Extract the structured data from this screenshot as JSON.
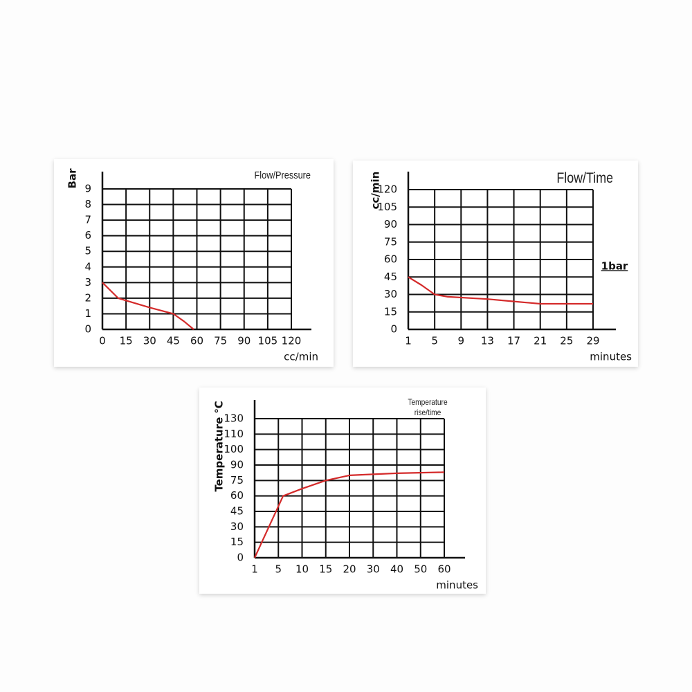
{
  "chart_data": [
    {
      "type": "line",
      "title": "Flow/Pressure",
      "x_label": "cc/min",
      "y_label": "Bar",
      "x": [
        0,
        10,
        30,
        45,
        52,
        58
      ],
      "values": [
        3,
        2,
        1.4,
        1,
        0.5,
        0
      ],
      "color": "#d42a2a",
      "xlim": [
        0,
        120
      ],
      "xticks": [
        0,
        15,
        30,
        45,
        60,
        75,
        90,
        105,
        120
      ],
      "ylim": [
        0,
        9
      ],
      "yticks": [
        0,
        1,
        2,
        3,
        4,
        5,
        6,
        7,
        8,
        9
      ],
      "grid": true
    },
    {
      "type": "line",
      "title": "Flow/Time",
      "x_label": "minutes",
      "y_label": "cc/min",
      "annotation": "1bar",
      "x": [
        1,
        3,
        5,
        7,
        13,
        17,
        21,
        29
      ],
      "values": [
        45,
        38,
        30,
        28,
        26,
        24,
        22,
        22
      ],
      "color": "#d42a2a",
      "xlim": [
        1,
        29
      ],
      "xticks": [
        1,
        5,
        9,
        13,
        17,
        21,
        25,
        29
      ],
      "ylim": [
        0,
        120
      ],
      "yticks": [
        0,
        15,
        30,
        45,
        60,
        75,
        90,
        105,
        120
      ],
      "grid": true
    },
    {
      "type": "line",
      "title": "Temperature rise/time",
      "x_label": "minutes",
      "y_label": "Temperature ℃",
      "x": [
        1,
        3,
        5,
        6,
        10,
        15,
        20,
        30,
        40,
        60
      ],
      "values": [
        0,
        25,
        50,
        60,
        67,
        75,
        80,
        81,
        82,
        83
      ],
      "color": "#d42a2a",
      "xlim": [
        1,
        60
      ],
      "xticks": [
        1,
        5,
        10,
        15,
        20,
        30,
        40,
        50,
        60
      ],
      "ylim": [
        0,
        130
      ],
      "yticks": [
        0,
        15,
        30,
        45,
        60,
        75,
        90,
        100,
        110,
        130
      ],
      "grid": true
    }
  ]
}
